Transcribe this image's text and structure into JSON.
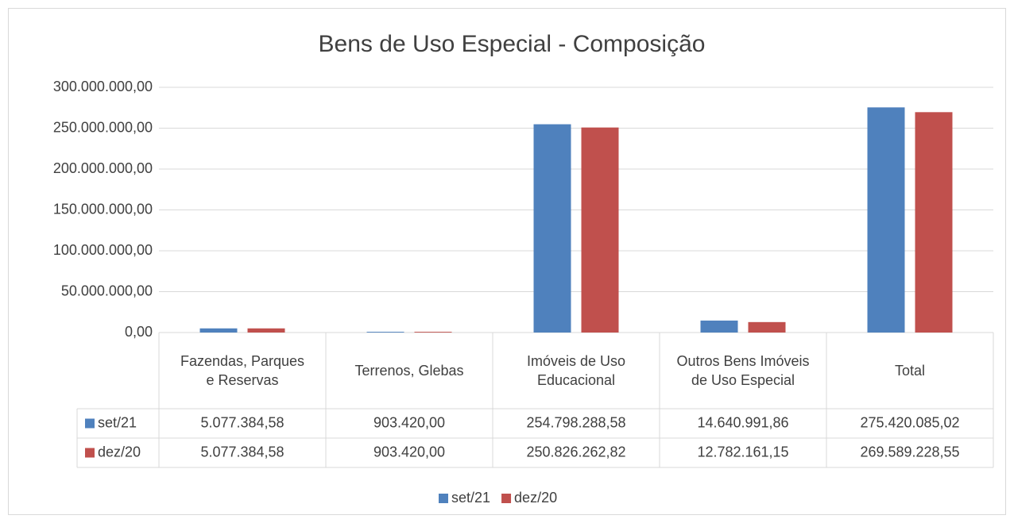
{
  "chart_data": {
    "type": "bar",
    "title": "Bens de Uso Especial - Composição",
    "categories": [
      "Fazendas, Parques e Reservas",
      "Terrenos, Glebas",
      "Imóveis de Uso Educacional",
      "Outros Bens Imóveis de Uso Especial",
      "Total"
    ],
    "series": [
      {
        "name": "set/21",
        "color": "#4f81bd",
        "values": [
          5077384.58,
          903420.0,
          254798288.58,
          14640991.86,
          275420085.02
        ],
        "value_labels": [
          "5.077.384,58",
          "903.420,00",
          "254.798.288,58",
          "14.640.991,86",
          "275.420.085,02"
        ]
      },
      {
        "name": "dez/20",
        "color": "#c0504d",
        "values": [
          5077384.58,
          903420.0,
          250826262.82,
          12782161.15,
          269589228.55
        ],
        "value_labels": [
          "5.077.384,58",
          "903.420,00",
          "250.826.262,82",
          "12.782.161,15",
          "269.589.228,55"
        ]
      }
    ],
    "ylim": [
      0,
      300000000
    ],
    "yticks": [
      {
        "value": 0,
        "label": "0,00"
      },
      {
        "value": 50000000,
        "label": "50.000.000,00"
      },
      {
        "value": 100000000,
        "label": "100.000.000,00"
      },
      {
        "value": 150000000,
        "label": "150.000.000,00"
      },
      {
        "value": 200000000,
        "label": "200.000.000,00"
      },
      {
        "value": 250000000,
        "label": "250.000.000,00"
      },
      {
        "value": 300000000,
        "label": "300.000.000,00"
      }
    ],
    "grid": true,
    "legend": "bottom"
  }
}
